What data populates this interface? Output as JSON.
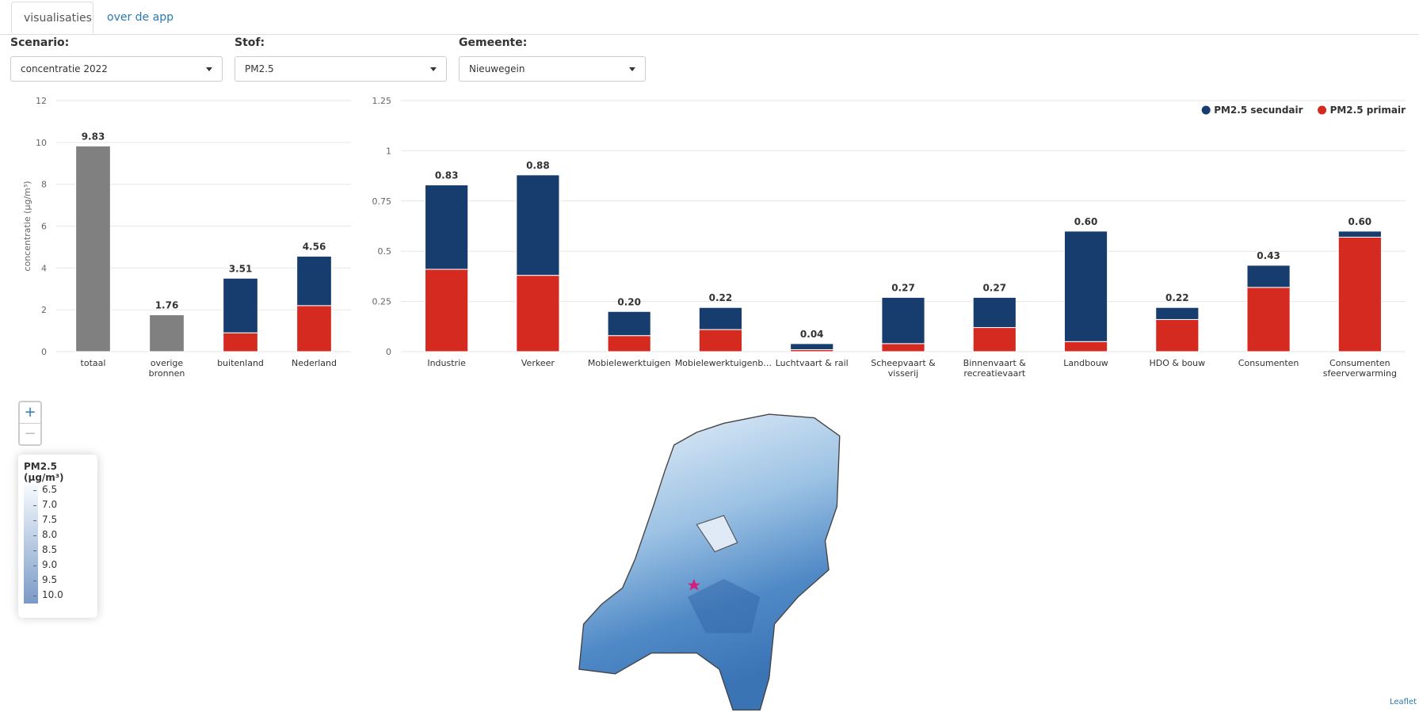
{
  "tabs": [
    "visualisaties",
    "over de app"
  ],
  "filters": [
    {
      "label": "Scenario:",
      "value": "concentratie 2022"
    },
    {
      "label": "Stof:",
      "value": "PM2.5"
    },
    {
      "label": "Gemeente:",
      "value": "Nieuwegein"
    }
  ],
  "chart_data": [
    {
      "type": "bar",
      "stacked": true,
      "ylabel": "concentratie (µg/m³)",
      "categories": [
        "totaal",
        "overige bronnen",
        "buitenland",
        "Nederland"
      ],
      "series": [
        {
          "color": "#808080",
          "values": [
            9.83,
            1.76,
            null,
            null
          ]
        },
        {
          "color": "#d42a20",
          "values": [
            null,
            null,
            0.9,
            2.2
          ]
        },
        {
          "color": "#163d6e",
          "values": [
            null,
            null,
            2.61,
            2.36
          ]
        }
      ],
      "totals": [
        9.83,
        1.76,
        3.51,
        4.56
      ],
      "ylim": [
        0,
        12
      ],
      "yticks": [
        0,
        2,
        4,
        6,
        8,
        10,
        12
      ],
      "grid": true
    },
    {
      "type": "bar",
      "stacked": true,
      "legend": "top-right",
      "categories": [
        "Industrie",
        "Verkeer",
        "Mobielewerktuigen",
        "Mobielewerktuigenb...",
        "Luchtvaart & rail",
        "Scheepvaart & visserij",
        "Binnenvaart & recreatievaart",
        "Landbouw",
        "HDO & bouw",
        "Consumenten",
        "Consumenten sfeerverwarming"
      ],
      "series": [
        {
          "name": "PM2.5 primair",
          "color": "#d42a20",
          "values": [
            0.41,
            0.38,
            0.08,
            0.11,
            0.01,
            0.04,
            0.12,
            0.05,
            0.16,
            0.32,
            0.57
          ]
        },
        {
          "name": "PM2.5 secundair",
          "color": "#163d6e",
          "values": [
            0.42,
            0.5,
            0.12,
            0.11,
            0.03,
            0.23,
            0.15,
            0.55,
            0.06,
            0.11,
            0.03
          ]
        }
      ],
      "totals": [
        0.83,
        0.88,
        0.2,
        0.22,
        0.04,
        0.27,
        0.27,
        0.6,
        0.22,
        0.43,
        0.6
      ],
      "total_labels": [
        "0.83",
        "0.88",
        "0.20",
        "0.22",
        "0.04",
        "0.27",
        "0.27",
        "0.60",
        "0.22",
        "0.43",
        "0.60"
      ],
      "ylim": [
        0,
        1.25
      ],
      "yticks": [
        0,
        0.25,
        0.5,
        0.75,
        1,
        1.25
      ],
      "grid": true
    }
  ],
  "map": {
    "zoom_in": "+",
    "zoom_out": "−",
    "legend_title": "PM2.5 (µg/m³)",
    "legend_labels": [
      "6.5",
      "7.0",
      "7.5",
      "8.0",
      "8.5",
      "9.0",
      "9.5",
      "10.0"
    ],
    "attribution": "Leaflet"
  }
}
